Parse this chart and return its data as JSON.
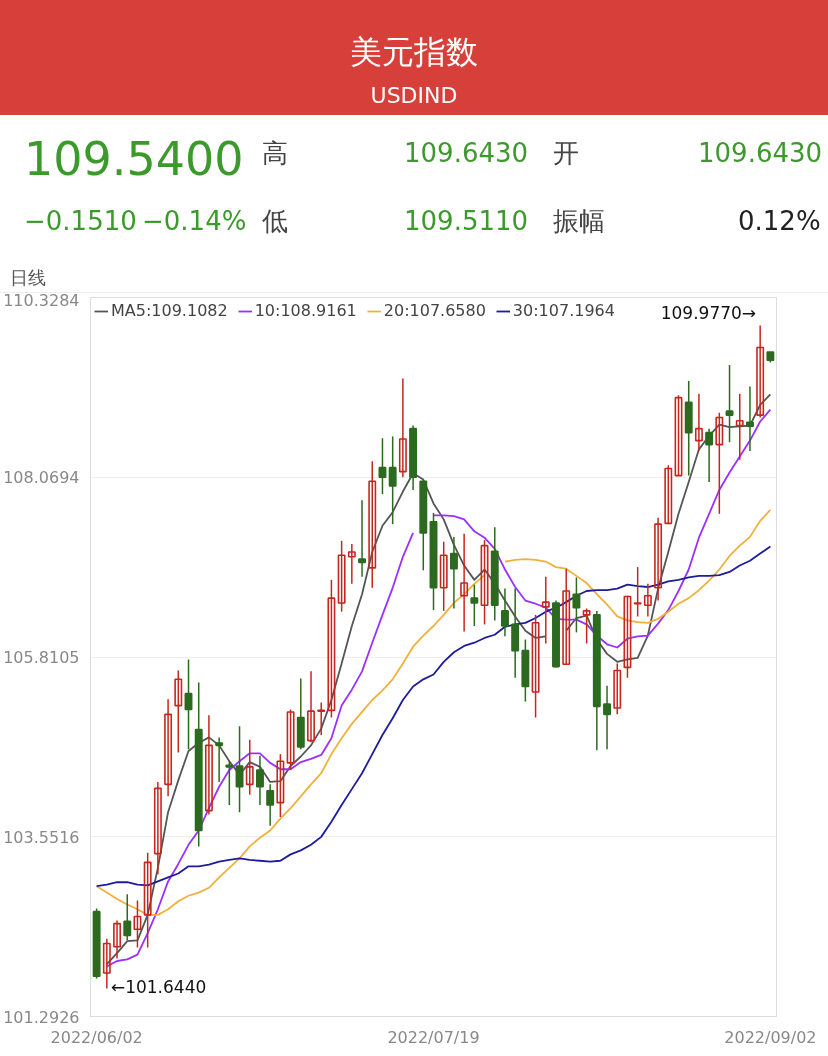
{
  "chart_data": {
    "type": "candlestick",
    "title": "美元指数",
    "subtitle": "USDIND",
    "annotations": [
      "109.5400",
      "−0.1510",
      "−0.14%",
      "高",
      "109.6430",
      "开",
      "109.6430",
      "低",
      "109.5110",
      "振幅",
      "0.12%",
      "日线",
      "109.9770→",
      "←101.6440"
    ],
    "categories": [
      "2022/06/02",
      null,
      null,
      null,
      null,
      null,
      null,
      null,
      null,
      null,
      null,
      null,
      null,
      null,
      null,
      null,
      null,
      null,
      null,
      null,
      null,
      null,
      null,
      null,
      null,
      null,
      null,
      null,
      null,
      null,
      null,
      null,
      null,
      "2022/07/19",
      null,
      null,
      null,
      null,
      null,
      null,
      null,
      null,
      null,
      null,
      null,
      null,
      null,
      null,
      null,
      null,
      null,
      null,
      null,
      null,
      null,
      null,
      null,
      null,
      null,
      null,
      null,
      null,
      null,
      null,
      null,
      null,
      "2022/09/02"
    ],
    "ohlc": [
      [
        102.61,
        102.65,
        101.77,
        101.8
      ],
      [
        101.84,
        102.27,
        101.644,
        102.21
      ],
      [
        102.17,
        102.5,
        102.02,
        102.46
      ],
      [
        102.49,
        102.83,
        102.25,
        102.31
      ],
      [
        102.39,
        102.75,
        102.16,
        102.55
      ],
      [
        102.57,
        103.35,
        102.16,
        103.23
      ],
      [
        103.34,
        104.24,
        103.08,
        104.16
      ],
      [
        104.21,
        105.28,
        104.06,
        105.09
      ],
      [
        105.2,
        105.64,
        104.61,
        105.53
      ],
      [
        105.35,
        105.78,
        104.65,
        105.15
      ],
      [
        104.9,
        105.49,
        103.43,
        103.63
      ],
      [
        103.88,
        105.08,
        103.83,
        104.7
      ],
      [
        104.73,
        104.8,
        104.24,
        104.7
      ],
      [
        104.45,
        104.5,
        103.95,
        104.43
      ],
      [
        104.44,
        104.94,
        103.86,
        104.18
      ],
      [
        104.21,
        104.77,
        104.08,
        104.43
      ],
      [
        104.39,
        104.57,
        103.95,
        104.18
      ],
      [
        104.13,
        104.21,
        103.69,
        103.95
      ],
      [
        103.98,
        104.59,
        103.8,
        104.5
      ],
      [
        104.48,
        105.15,
        104.39,
        105.12
      ],
      [
        105.05,
        105.54,
        104.65,
        104.68
      ],
      [
        104.76,
        105.63,
        104.74,
        105.13
      ],
      [
        105.13,
        105.24,
        104.83,
        105.14
      ],
      [
        105.14,
        106.78,
        105.05,
        106.55
      ],
      [
        106.49,
        107.27,
        106.38,
        107.09
      ],
      [
        107.07,
        107.23,
        106.73,
        107.13
      ],
      [
        107.04,
        107.78,
        106.82,
        107.0
      ],
      [
        106.93,
        108.27,
        106.68,
        108.02
      ],
      [
        108.19,
        108.56,
        107.86,
        108.07
      ],
      [
        108.19,
        108.58,
        107.48,
        107.96
      ],
      [
        108.14,
        109.31,
        108.07,
        108.55
      ],
      [
        108.68,
        108.72,
        107.91,
        108.07
      ],
      [
        108.02,
        108.02,
        106.9,
        107.37
      ],
      [
        107.51,
        107.62,
        106.4,
        106.68
      ],
      [
        106.68,
        107.26,
        106.39,
        107.09
      ],
      [
        107.11,
        107.32,
        106.42,
        106.92
      ],
      [
        106.58,
        107.36,
        106.13,
        106.74
      ],
      [
        106.55,
        106.72,
        106.2,
        106.49
      ],
      [
        106.46,
        107.28,
        106.22,
        107.21
      ],
      [
        107.14,
        107.44,
        106.27,
        106.46
      ],
      [
        106.39,
        106.67,
        106.07,
        106.2
      ],
      [
        106.22,
        106.67,
        105.55,
        105.89
      ],
      [
        105.89,
        106.03,
        105.25,
        105.44
      ],
      [
        105.37,
        106.34,
        105.05,
        106.24
      ],
      [
        106.44,
        106.82,
        105.98,
        106.5
      ],
      [
        106.49,
        106.52,
        105.68,
        105.69
      ],
      [
        105.72,
        106.92,
        105.72,
        106.64
      ],
      [
        106.6,
        106.81,
        106.12,
        106.43
      ],
      [
        106.34,
        106.42,
        105.98,
        106.39
      ],
      [
        106.34,
        106.39,
        104.64,
        105.19
      ],
      [
        105.22,
        105.45,
        104.65,
        105.09
      ],
      [
        105.17,
        105.73,
        105.09,
        105.64
      ],
      [
        105.68,
        106.58,
        105.55,
        106.57
      ],
      [
        106.48,
        106.94,
        106.32,
        106.49
      ],
      [
        106.46,
        106.73,
        106.32,
        106.58
      ],
      [
        106.68,
        107.56,
        106.52,
        107.48
      ],
      [
        107.49,
        108.22,
        107.48,
        108.18
      ],
      [
        108.09,
        109.1,
        108.09,
        109.07
      ],
      [
        109.01,
        109.28,
        108.09,
        108.63
      ],
      [
        108.53,
        109.12,
        108.4,
        108.68
      ],
      [
        108.63,
        108.68,
        108.01,
        108.48
      ],
      [
        108.48,
        108.88,
        107.61,
        108.82
      ],
      [
        108.9,
        109.48,
        108.51,
        108.85
      ],
      [
        108.72,
        109.12,
        108.29,
        108.78
      ],
      [
        108.76,
        109.21,
        108.4,
        108.71
      ],
      [
        108.85,
        109.977,
        108.82,
        109.7
      ],
      [
        109.643,
        109.643,
        109.511,
        109.54
      ]
    ],
    "colors": [
      "#2b6a1f",
      "#c4271f",
      "#c4271f",
      "#2b6a1f",
      "#c4271f",
      "#c4271f",
      "#c4271f",
      "#c4271f",
      "#c4271f",
      "#2b6a1f",
      "#2b6a1f",
      "#c4271f",
      "#2b6a1f",
      "#2b6a1f",
      "#2b6a1f",
      "#c4271f",
      "#2b6a1f",
      "#2b6a1f",
      "#c4271f",
      "#c4271f",
      "#2b6a1f",
      "#c4271f",
      "#c4271f",
      "#c4271f",
      "#c4271f",
      "#c4271f",
      "#2b6a1f",
      "#c4271f",
      "#2b6a1f",
      "#2b6a1f",
      "#c4271f",
      "#2b6a1f",
      "#2b6a1f",
      "#2b6a1f",
      "#c4271f",
      "#2b6a1f",
      "#c4271f",
      "#2b6a1f",
      "#c4271f",
      "#2b6a1f",
      "#2b6a1f",
      "#2b6a1f",
      "#2b6a1f",
      "#c4271f",
      "#c4271f",
      "#2b6a1f",
      "#c4271f",
      "#2b6a1f",
      "#c4271f",
      "#2b6a1f",
      "#2b6a1f",
      "#c4271f",
      "#c4271f",
      "#c4271f",
      "#c4271f",
      "#c4271f",
      "#c4271f",
      "#c4271f",
      "#2b6a1f",
      "#c4271f",
      "#2b6a1f",
      "#c4271f",
      "#2b6a1f",
      "#c4271f",
      "#2b6a1f",
      "#c4271f",
      "#2b6a1f"
    ],
    "series": [
      {
        "type": "line",
        "name": "MA5:109.1082",
        "color": "#555555",
        "values": [
          null,
          101.95,
          102.09,
          102.24,
          102.25,
          102.57,
          103.16,
          103.86,
          104.26,
          104.63,
          104.73,
          104.8,
          104.7,
          104.5,
          104.33,
          104.49,
          104.43,
          104.24,
          104.25,
          104.44,
          104.56,
          104.7,
          104.91,
          105.27,
          105.73,
          106.2,
          106.6,
          107.13,
          107.46,
          107.63,
          107.89,
          108.12,
          108.04,
          107.74,
          107.54,
          107.22,
          106.96,
          106.78,
          106.91,
          106.73,
          106.52,
          106.32,
          106.14,
          106.05,
          106.07,
          null,
          106.14,
          106.3,
          106.33,
          106.03,
          105.85,
          105.75,
          105.78,
          105.8,
          106.08,
          106.67,
          107.13,
          107.61,
          108.01,
          108.42,
          108.59,
          108.73,
          108.7,
          108.71,
          108.72,
          108.98,
          109.11
        ]
      },
      {
        "type": "line",
        "name": "10:108.9161",
        "color": "#9b30ff",
        "values": [
          null,
          101.92,
          101.99,
          102.01,
          102.07,
          102.34,
          102.64,
          102.99,
          103.21,
          103.45,
          103.63,
          103.91,
          104.18,
          104.39,
          104.5,
          104.6,
          104.6,
          104.48,
          104.4,
          104.4,
          104.49,
          104.53,
          104.58,
          104.79,
          105.2,
          105.4,
          105.63,
          105.99,
          106.34,
          106.68,
          107.07,
          107.37,
          null,
          107.59,
          107.59,
          107.58,
          107.54,
          107.39,
          107.31,
          107.17,
          106.91,
          106.69,
          106.52,
          106.48,
          106.43,
          106.29,
          106.28,
          106.28,
          106.22,
          106.08,
          105.97,
          105.93,
          106.04,
          106.07,
          106.08,
          106.23,
          106.4,
          106.64,
          106.91,
          107.31,
          107.61,
          107.91,
          108.13,
          108.33,
          108.53,
          108.77,
          108.92
        ]
      },
      {
        "type": "line",
        "name": "20:107.6580",
        "color": "#f0b03c",
        "values": [
          102.93,
          102.85,
          102.77,
          102.7,
          102.64,
          102.57,
          102.57,
          102.64,
          102.74,
          102.81,
          102.85,
          102.91,
          103.04,
          103.16,
          103.28,
          103.43,
          103.54,
          103.63,
          103.78,
          103.91,
          104.06,
          104.21,
          104.35,
          104.59,
          104.79,
          104.97,
          105.12,
          105.27,
          105.39,
          105.53,
          105.73,
          105.94,
          106.08,
          106.2,
          106.34,
          106.49,
          106.6,
          106.73,
          106.84,
          null,
          107.01,
          107.03,
          107.04,
          107.03,
          107.01,
          106.94,
          106.92,
          106.83,
          106.74,
          106.6,
          106.47,
          106.32,
          106.27,
          106.25,
          106.24,
          106.29,
          106.38,
          106.48,
          106.55,
          106.65,
          106.77,
          106.91,
          107.08,
          107.21,
          107.32,
          107.52,
          107.66
        ]
      },
      {
        "type": "line",
        "name": "30:107.1964",
        "color": "#1c1c9c",
        "values": [
          102.93,
          102.95,
          102.98,
          102.98,
          102.95,
          102.94,
          102.99,
          103.04,
          103.09,
          103.18,
          103.18,
          103.2,
          103.24,
          103.26,
          103.28,
          103.26,
          103.25,
          103.24,
          103.25,
          103.33,
          103.38,
          103.45,
          103.55,
          103.74,
          103.95,
          104.15,
          104.35,
          104.59,
          104.83,
          105.04,
          105.27,
          105.44,
          105.53,
          105.59,
          105.75,
          105.87,
          105.95,
          105.99,
          106.05,
          106.09,
          106.19,
          106.22,
          106.24,
          106.3,
          106.38,
          106.43,
          106.5,
          106.58,
          106.64,
          106.65,
          106.65,
          106.67,
          106.72,
          106.7,
          106.69,
          106.72,
          106.76,
          106.78,
          106.81,
          106.83,
          106.83,
          106.84,
          106.88,
          106.96,
          107.02,
          107.11,
          107.2
        ]
      }
    ],
    "ylim": [
      101.2926,
      110.3284
    ],
    "yticks": [
      101.2926,
      103.5516,
      105.8105,
      108.0694,
      110.3284
    ],
    "grid": "y",
    "legend": "top left"
  }
}
